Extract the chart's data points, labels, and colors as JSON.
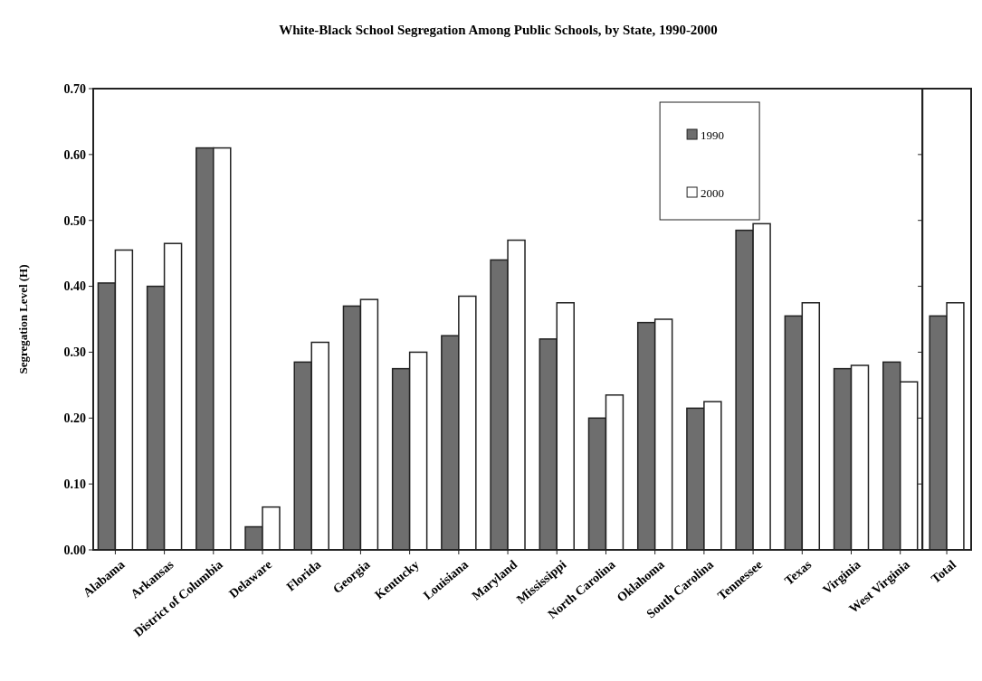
{
  "chart_data": [
    {
      "type": "bar",
      "title": "White-Black School Segregation Among Public Schools, by State, 1990-2000",
      "ylabel": "Segregation Level (H)",
      "categories": [
        "Alabama",
        "Arkansas",
        "District of Columbia",
        "Delaware",
        "Florida",
        "Georgia",
        "Kentucky",
        "Louisiana",
        "Maryland",
        "Mississippi",
        "North Carolina",
        "Oklahoma",
        "South Carolina",
        "Tennessee",
        "Texas",
        "Virginia",
        "West Virginia"
      ],
      "series": [
        {
          "name": "1990",
          "color": "#6e6e6e",
          "values": [
            0.405,
            0.4,
            0.61,
            0.035,
            0.285,
            0.37,
            0.275,
            0.325,
            0.44,
            0.32,
            0.2,
            0.345,
            0.215,
            0.485,
            0.355,
            0.275,
            0.285
          ]
        },
        {
          "name": "2000",
          "color": "#ffffff",
          "values": [
            0.455,
            0.465,
            0.61,
            0.065,
            0.315,
            0.38,
            0.3,
            0.385,
            0.47,
            0.375,
            0.235,
            0.35,
            0.225,
            0.495,
            0.375,
            0.28,
            0.255
          ]
        }
      ],
      "ylim": [
        0,
        0.7
      ],
      "yticks": [
        {
          "value": 0,
          "label": "0.00"
        },
        {
          "value": 0.1,
          "label": "0.10"
        },
        {
          "value": 0.2,
          "label": "0.20"
        },
        {
          "value": 0.3,
          "label": "0.30"
        },
        {
          "value": 0.4,
          "label": "0.40"
        },
        {
          "value": 0.5,
          "label": "0.50"
        },
        {
          "value": 0.6,
          "label": "0.60"
        },
        {
          "value": 0.7,
          "label": "0.70"
        }
      ],
      "grid": false,
      "legend": "top right"
    },
    {
      "type": "bar",
      "categories": [
        "Total"
      ],
      "series": [
        {
          "color": "#6e6e6e",
          "values": [
            0.355
          ]
        },
        {
          "color": "#ffffff",
          "values": [
            0.375
          ]
        }
      ],
      "ylim": [
        0,
        0.7
      ],
      "yticks": [
        {
          "value": 0,
          "label": null
        },
        {
          "value": 0.1,
          "label": null
        },
        {
          "value": 0.2,
          "label": null
        },
        {
          "value": 0.3,
          "label": null
        },
        {
          "value": 0.4,
          "label": null
        },
        {
          "value": 0.5,
          "label": null
        },
        {
          "value": 0.6,
          "label": null
        },
        {
          "value": 0.7,
          "label": null
        }
      ],
      "tick_labels": "x"
    }
  ]
}
